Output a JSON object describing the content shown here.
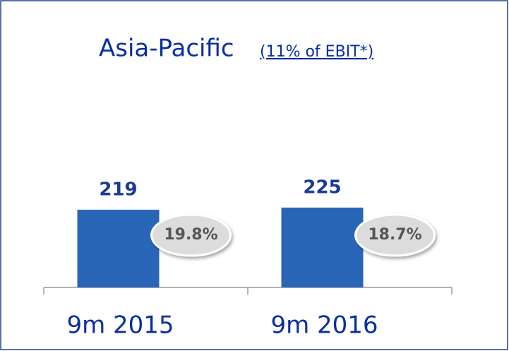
{
  "chart_data": {
    "type": "bar",
    "title": "Asia-Pacific",
    "subtitle": "(11% of EBIT*)",
    "categories": [
      "9m 2015",
      "9m 2016"
    ],
    "values": [
      219,
      225
    ],
    "color": "#2a66b8",
    "margins": {
      "values": [
        19.8,
        18.7
      ],
      "value_labels": [
        "19.8%",
        "18.7%"
      ]
    },
    "ylim": [
      0,
      400
    ]
  }
}
